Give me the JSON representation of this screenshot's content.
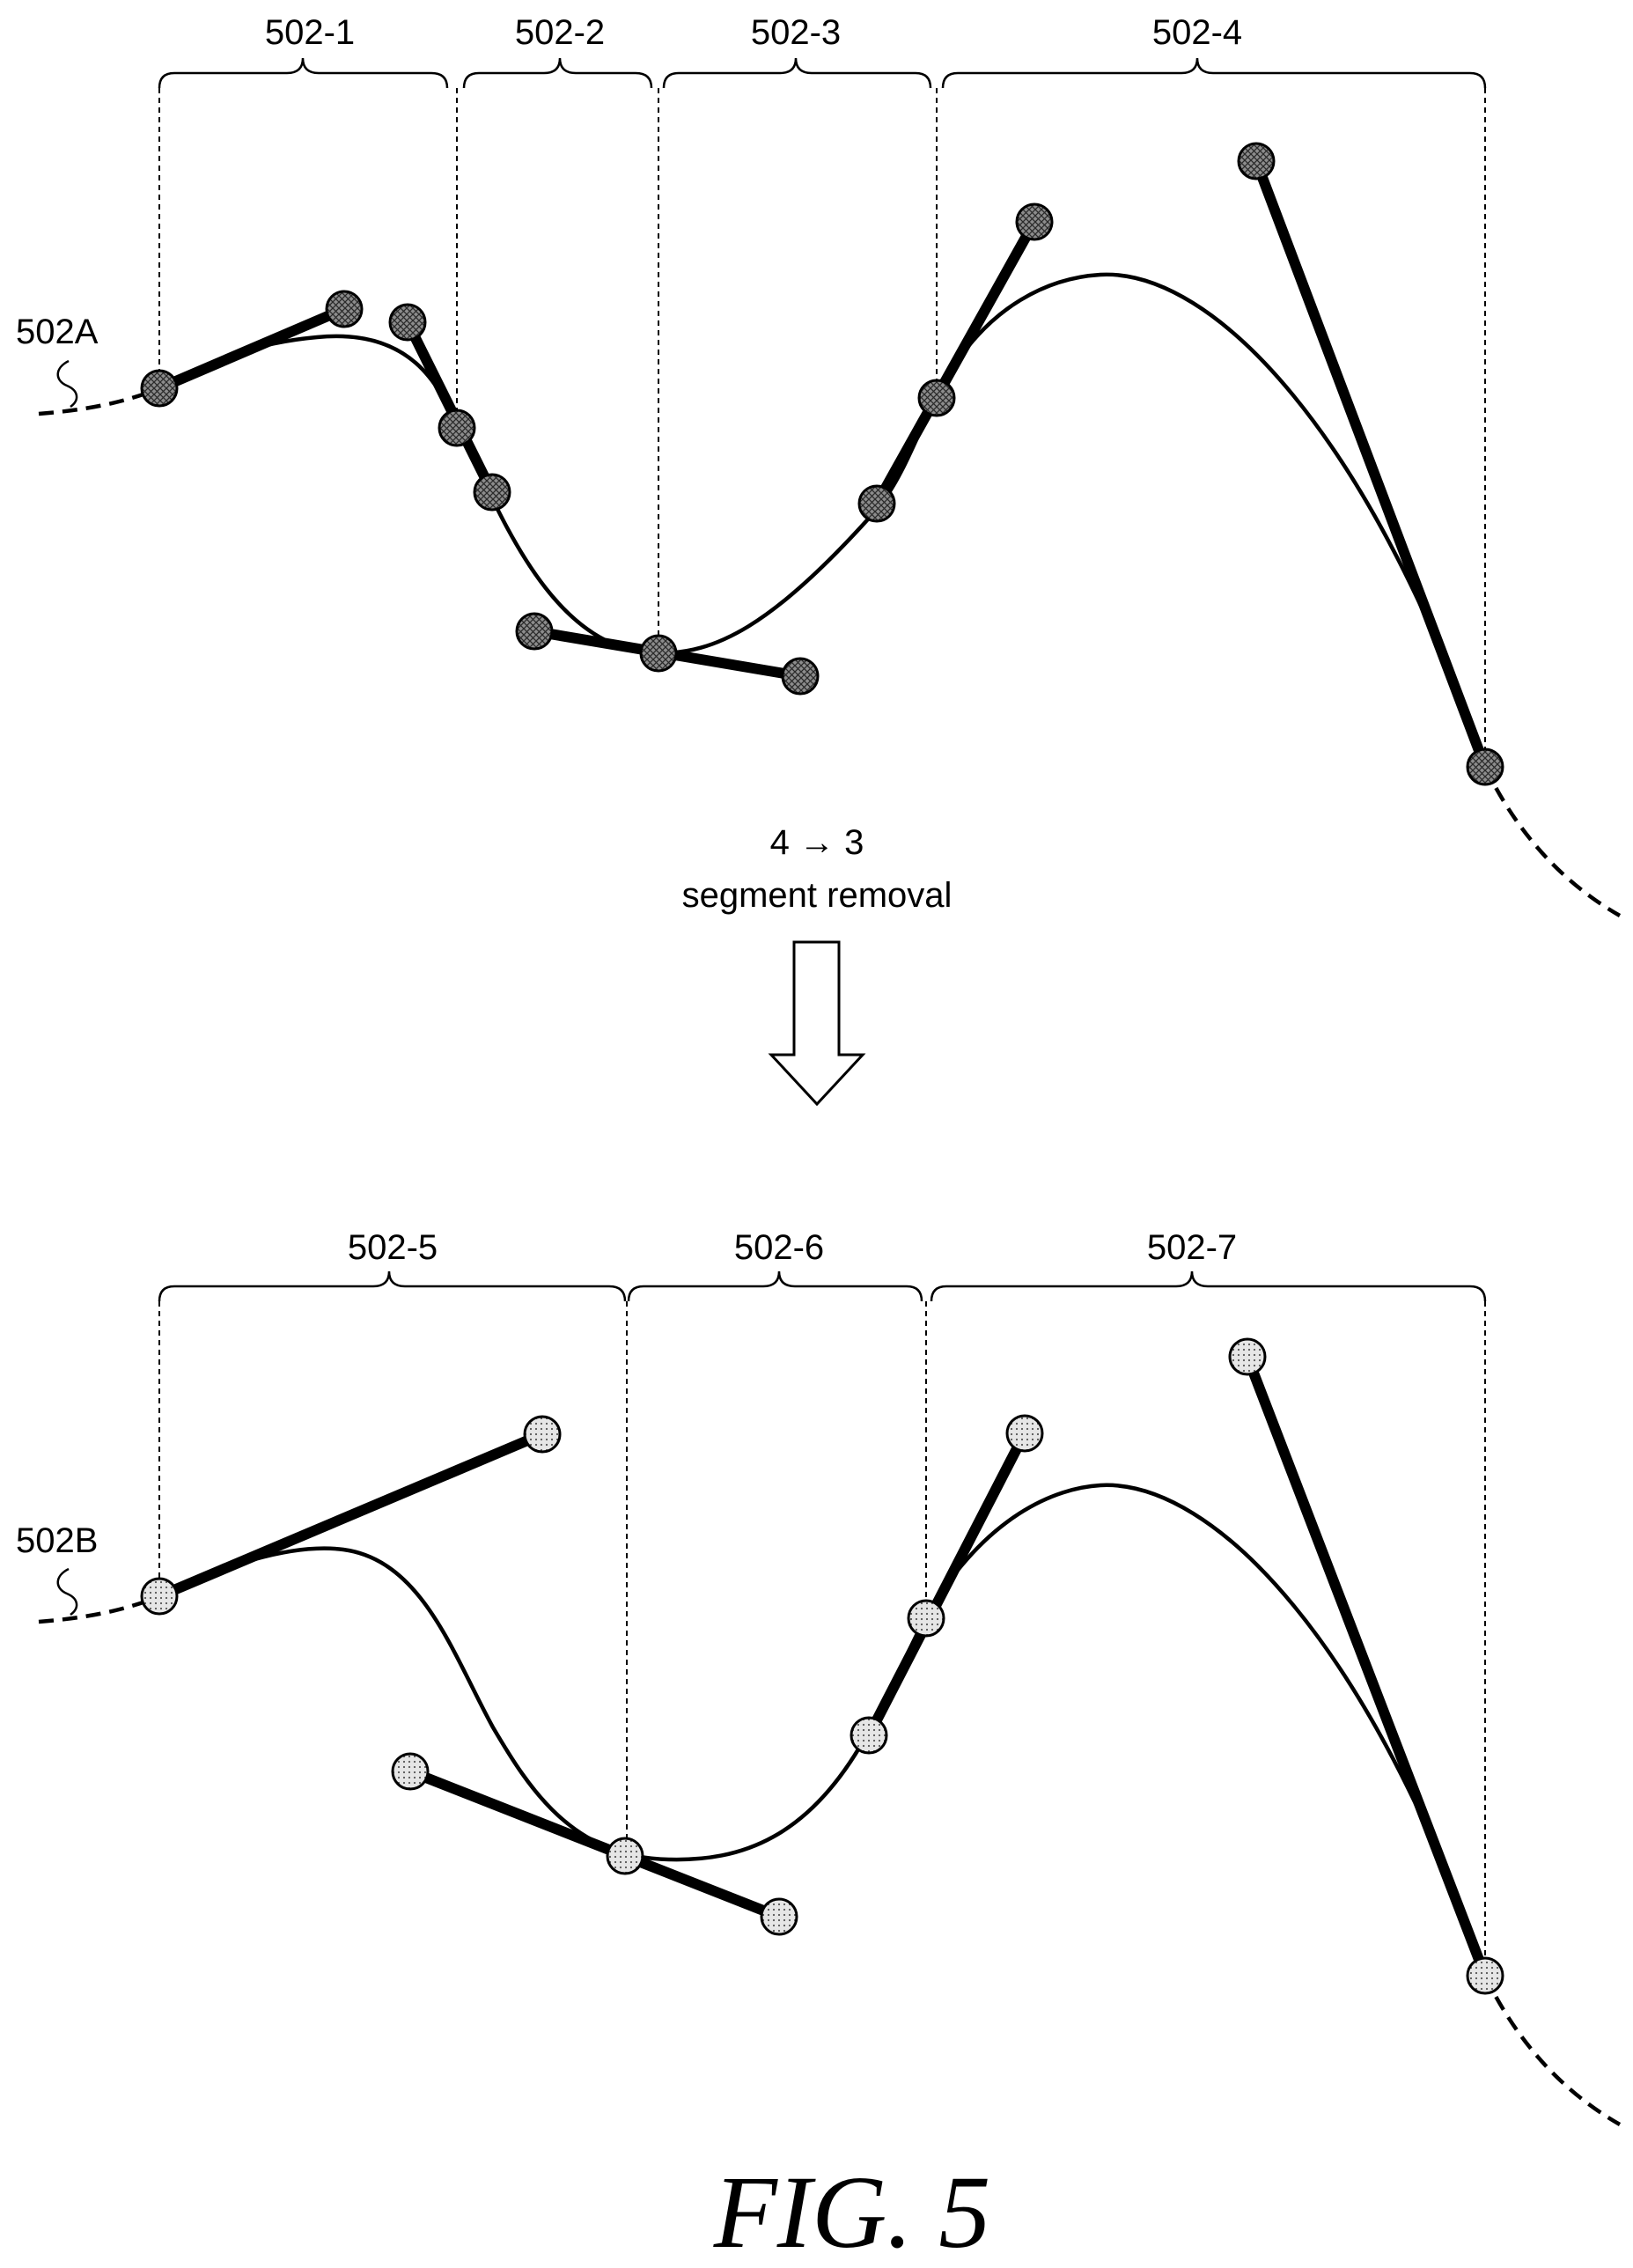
{
  "top": {
    "curve_label": "502A",
    "segments": [
      "502-1",
      "502-2",
      "502-3",
      "502-4"
    ]
  },
  "transition": {
    "line1": "4 → 3",
    "line2": "segment removal"
  },
  "bottom": {
    "curve_label": "502B",
    "segments": [
      "502-5",
      "502-6",
      "502-7"
    ]
  },
  "caption": "FIG. 5",
  "colors": {
    "ink": "#000000",
    "top_point_fill": "#8c8c8c",
    "bottom_point_fill": "#e6e6e6"
  }
}
